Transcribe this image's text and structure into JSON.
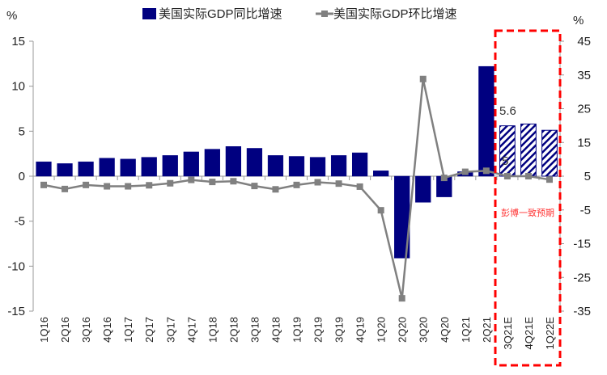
{
  "chart_data": {
    "type": "bar+line",
    "title": "",
    "left_axis": {
      "label": "%",
      "ylim": [
        -15,
        15
      ],
      "ticks": [
        15,
        10,
        5,
        0,
        -5,
        -10,
        -15
      ]
    },
    "right_axis": {
      "label": "%",
      "ylim": [
        -35,
        45
      ],
      "ticks": [
        45,
        35,
        25,
        15,
        5,
        -5,
        -15,
        -25,
        -35
      ]
    },
    "categories": [
      "1Q16",
      "2Q16",
      "3Q16",
      "4Q16",
      "1Q17",
      "2Q17",
      "3Q17",
      "4Q17",
      "1Q18",
      "2Q18",
      "3Q18",
      "4Q18",
      "1Q19",
      "2Q19",
      "3Q19",
      "4Q19",
      "1Q20",
      "2Q20",
      "3Q20",
      "4Q20",
      "1Q21",
      "2Q21",
      "3Q21E",
      "4Q21E",
      "1Q22E"
    ],
    "series": [
      {
        "name": "美国实际GDP同比增速",
        "type": "bar",
        "axis": "left",
        "color": "#000080",
        "values": [
          1.6,
          1.4,
          1.6,
          2.0,
          1.9,
          2.1,
          2.3,
          2.7,
          3.0,
          3.3,
          3.1,
          2.3,
          2.2,
          2.1,
          2.3,
          2.6,
          0.6,
          -9.1,
          -2.9,
          -2.3,
          0.5,
          12.2,
          5.6,
          5.8,
          5.1
        ],
        "forecast_from": "3Q21E"
      },
      {
        "name": "美国实际GDP环比增速",
        "type": "line",
        "axis": "right",
        "color": "#808080",
        "values": [
          2.4,
          1.2,
          2.4,
          2.0,
          2.0,
          2.3,
          2.9,
          3.9,
          3.3,
          3.5,
          2.1,
          1.1,
          2.4,
          3.2,
          2.8,
          1.9,
          -5.1,
          -31.2,
          33.8,
          4.5,
          6.3,
          6.6,
          5.0,
          5.0,
          4.0
        ]
      }
    ],
    "data_labels": {
      "bar": "5.6",
      "line": "5"
    },
    "annotation": "彭博一致预期",
    "legend_position": "top"
  }
}
